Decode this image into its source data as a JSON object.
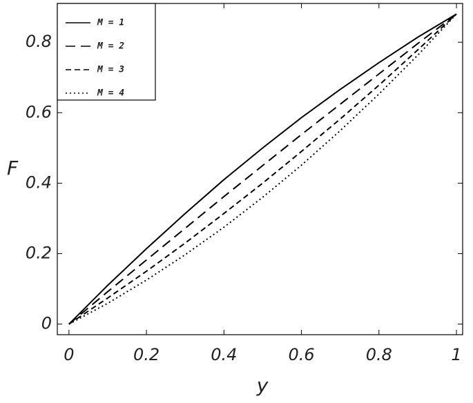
{
  "chart_data": {
    "type": "line",
    "x_label": "y",
    "y_label": "F",
    "x": [
      0,
      0.1,
      0.2,
      0.3,
      0.4,
      0.5,
      0.6,
      0.7,
      0.8,
      0.9,
      1
    ],
    "series": [
      {
        "name": "M = 1",
        "color": "#000000",
        "dash": "none",
        "values": [
          0,
          0.11,
          0.214,
          0.314,
          0.41,
          0.5,
          0.586,
          0.666,
          0.742,
          0.814,
          0.88
        ]
      },
      {
        "name": "M = 2",
        "color": "#000000",
        "dash": "14,8",
        "values": [
          0,
          0.092,
          0.182,
          0.272,
          0.362,
          0.45,
          0.538,
          0.624,
          0.71,
          0.796,
          0.88
        ]
      },
      {
        "name": "M = 3",
        "color": "#000000",
        "dash": "8,5",
        "values": [
          0,
          0.074,
          0.15,
          0.23,
          0.314,
          0.4,
          0.49,
          0.582,
          0.678,
          0.778,
          0.88
        ]
      },
      {
        "name": "M = 4",
        "color": "#000000",
        "dash": "2,4",
        "values": [
          0,
          0.059,
          0.125,
          0.197,
          0.275,
          0.36,
          0.451,
          0.549,
          0.653,
          0.763,
          0.88
        ]
      }
    ],
    "xlim": [
      -0.03,
      1.016
    ],
    "ylim": [
      -0.03,
      0.91
    ],
    "xticks": [
      0,
      0.2,
      0.4,
      0.6,
      0.8,
      1
    ],
    "yticks": [
      0,
      0.2,
      0.4,
      0.6,
      0.8
    ],
    "legend": "upper left"
  }
}
